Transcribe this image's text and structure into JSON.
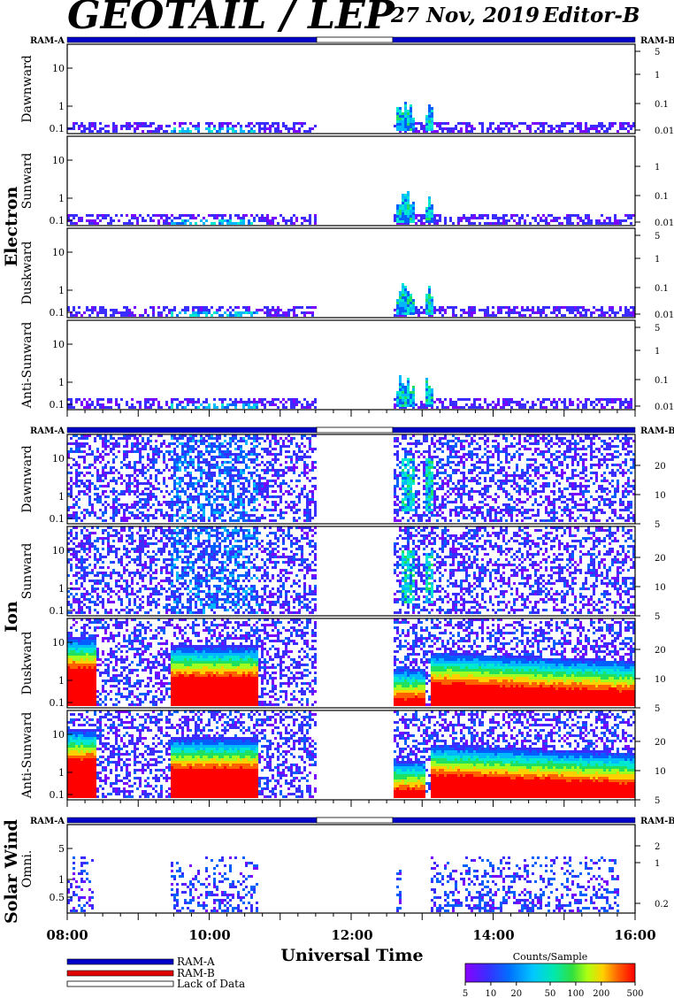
{
  "header": {
    "title": "GEOTAIL / LEP",
    "date": "27 Nov, 2019",
    "editor": "Editor-B"
  },
  "colors": {
    "ram_a": "#0000c8",
    "ram_b": "#e00000",
    "lack": "#ffffff",
    "colormap": [
      "#7a00ff",
      "#3a2dff",
      "#0060ff",
      "#00b8ff",
      "#00e8d0",
      "#20e060",
      "#a0ff20",
      "#ffd000",
      "#ff6000",
      "#ff0000"
    ]
  },
  "sections": [
    {
      "name": "Electron",
      "ram_a_label": "RAM-A",
      "ram_b_label": "RAM-B",
      "panels": [
        {
          "label": "Dawnward",
          "left_ticks": [
            "10",
            "1",
            "0.1"
          ],
          "right_ticks": [
            "5",
            "1",
            "0.1",
            "0.01"
          ]
        },
        {
          "label": "Sunward",
          "left_ticks": [
            "10",
            "1",
            "0.1"
          ],
          "right_ticks": [
            "1",
            "0.1",
            "0.01"
          ]
        },
        {
          "label": "Duskward",
          "left_ticks": [
            "10",
            "1",
            "0.1"
          ],
          "right_ticks": [
            "5",
            "1",
            "0.1",
            "0.01"
          ]
        },
        {
          "label": "Anti-Sunward",
          "left_ticks": [
            "10",
            "1",
            "0.1"
          ],
          "right_ticks": [
            "5",
            "1",
            "0.1",
            "0.01"
          ]
        }
      ]
    },
    {
      "name": "Ion",
      "ram_a_label": "RAM-A",
      "ram_b_label": "RAM-B",
      "panels": [
        {
          "label": "Dawnward",
          "left_ticks": [
            "10",
            "1",
            "0.1"
          ],
          "right_ticks": [
            "20",
            "10",
            "5"
          ]
        },
        {
          "label": "Sunward",
          "left_ticks": [
            "10",
            "1",
            "0.1"
          ],
          "right_ticks": [
            "20",
            "10",
            "5"
          ]
        },
        {
          "label": "Duskward",
          "left_ticks": [
            "10",
            "1",
            "0.1"
          ],
          "right_ticks": [
            "20",
            "10",
            "5"
          ]
        },
        {
          "label": "Anti-Sunward",
          "left_ticks": [
            "10",
            "1",
            "0.1"
          ],
          "right_ticks": [
            "20",
            "10",
            "5"
          ]
        }
      ]
    },
    {
      "name": "Solar Wind",
      "ram_a_label": "RAM-A",
      "ram_b_label": "RAM-B",
      "panels": [
        {
          "label": "Omni.",
          "left_ticks": [
            "5",
            "1",
            "0.5"
          ],
          "right_ticks": [
            "2",
            "1",
            "0.2"
          ]
        }
      ]
    }
  ],
  "axis": {
    "xlabel": "Universal Time",
    "ticks": [
      "08:00",
      "10:00",
      "12:00",
      "14:00",
      "16:00"
    ]
  },
  "legend": {
    "ram_a": "RAM-A",
    "ram_b": "RAM-B",
    "lack": "Lack of Data",
    "colorbar_title": "Counts/Sample",
    "colorbar_ticks": [
      "5",
      "10",
      "20",
      "50",
      "100",
      "200",
      "500"
    ]
  },
  "chart_data": {
    "type": "heatmap",
    "x_range": [
      "08:00",
      "16:00"
    ],
    "data_gap": [
      "11:30",
      "12:35"
    ],
    "colorbar_range": [
      5,
      500
    ],
    "colorbar_scale": "log",
    "panels": [
      {
        "group": "Electron",
        "label": "Dawnward",
        "y_range": [
          0.1,
          40
        ],
        "y_scale": "log",
        "coverage": [
          "08:00",
          "16:00"
        ]
      },
      {
        "group": "Electron",
        "label": "Sunward",
        "y_range": [
          0.1,
          40
        ],
        "y_scale": "log",
        "coverage": [
          "08:00",
          "16:00"
        ]
      },
      {
        "group": "Electron",
        "label": "Duskward",
        "y_range": [
          0.1,
          40
        ],
        "y_scale": "log",
        "coverage": [
          "08:00",
          "16:00"
        ]
      },
      {
        "group": "Electron",
        "label": "Anti-Sunward",
        "y_range": [
          0.1,
          40
        ],
        "y_scale": "log",
        "coverage": [
          "08:00",
          "16:00"
        ]
      },
      {
        "group": "Ion",
        "label": "Dawnward",
        "y_range": [
          0.1,
          40
        ],
        "y_scale": "log",
        "coverage": [
          "08:00",
          "16:00"
        ]
      },
      {
        "group": "Ion",
        "label": "Sunward",
        "y_range": [
          0.1,
          40
        ],
        "y_scale": "log",
        "coverage": [
          "08:00",
          "16:00"
        ]
      },
      {
        "group": "Ion",
        "label": "Duskward",
        "y_range": [
          0.1,
          40
        ],
        "y_scale": "log",
        "coverage": [
          "08:00",
          "16:00"
        ]
      },
      {
        "group": "Ion",
        "label": "Anti-Sunward",
        "y_range": [
          0.1,
          40
        ],
        "y_scale": "log",
        "coverage": [
          "08:00",
          "16:00"
        ]
      },
      {
        "group": "Solar Wind",
        "label": "Omni.",
        "y_range": [
          0.2,
          8
        ],
        "y_scale": "log",
        "coverage": [
          "08:00",
          "16:00"
        ]
      }
    ]
  }
}
